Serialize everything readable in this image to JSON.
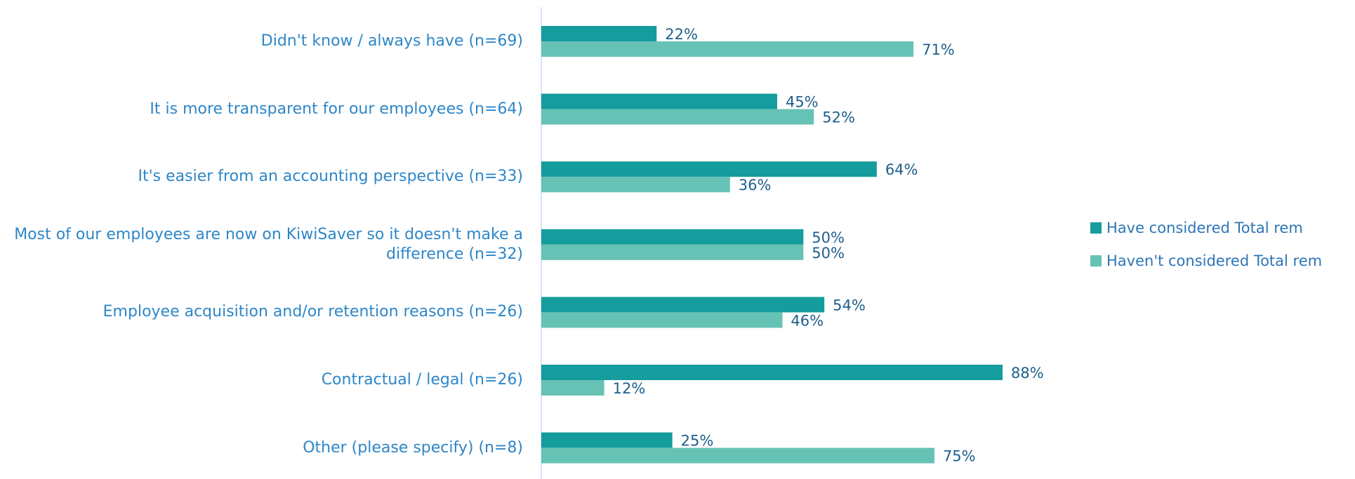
{
  "chart_data": {
    "type": "bar",
    "orientation": "horizontal",
    "categories": [
      "Didn't know / always have (n=69)",
      "It is more transparent for our employees (n=64)",
      "It's easier from an accounting perspective (n=33)",
      "Most of our employees are now on KiwiSaver so it doesn't make a difference (n=32)",
      "Employee acquisition and/or retention reasons (n=26)",
      "Contractual / legal (n=26)",
      "Other (please specify) (n=8)"
    ],
    "series": [
      {
        "name": "Have considered Total rem",
        "color": "#159c9c",
        "values": [
          22,
          45,
          64,
          50,
          54,
          88,
          25
        ],
        "value_labels": [
          "22%",
          "45%",
          "64%",
          "50%",
          "54%",
          "88%",
          "25%"
        ]
      },
      {
        "name": "Haven't considered Total rem",
        "color": "#66c2b4",
        "values": [
          71,
          52,
          36,
          50,
          46,
          12,
          75
        ],
        "value_labels": [
          "71%",
          "52%",
          "36%",
          "50%",
          "46%",
          "12%",
          "75%"
        ]
      }
    ],
    "legend": "right"
  }
}
